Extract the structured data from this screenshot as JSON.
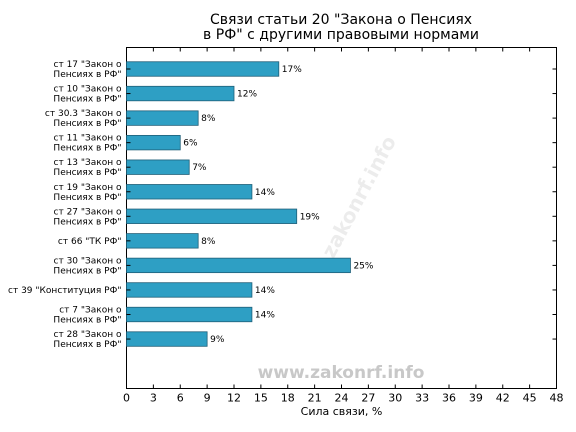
{
  "chart_data": {
    "type": "bar",
    "orientation": "horizontal",
    "title_lines": [
      "Связи статьи 20 \"Закона о Пенсиях",
      "в РФ\" с другими правовыми нормами"
    ],
    "xlabel": "Сила связи, %",
    "ylabel": "",
    "xlim": [
      0,
      48
    ],
    "xticks": [
      0,
      3,
      6,
      9,
      12,
      15,
      18,
      21,
      24,
      27,
      30,
      33,
      36,
      39,
      42,
      45,
      48
    ],
    "bar_color": "#2e9fc4",
    "value_suffix": "%",
    "categories": [
      [
        "ст 17 \"Закон о",
        "Пенсиях в РФ\""
      ],
      [
        "ст 10 \"Закон о",
        "Пенсиях в РФ\""
      ],
      [
        "ст 30.3 \"Закон о",
        "Пенсиях в РФ\""
      ],
      [
        "ст 11 \"Закон о",
        "Пенсиях в РФ\""
      ],
      [
        "ст 13 \"Закон о",
        "Пенсиях в РФ\""
      ],
      [
        "ст 19 \"Закон о",
        "Пенсиях в РФ\""
      ],
      [
        "ст 27 \"Закон о",
        "Пенсиях в РФ\""
      ],
      [
        "ст 66 \"ТК РФ\""
      ],
      [
        "ст 30 \"Закон о",
        "Пенсиях в РФ\""
      ],
      [
        "ст 39 \"Конституция РФ\""
      ],
      [
        "ст 7 \"Закон о",
        "Пенсиях в РФ\""
      ],
      [
        "ст 28 \"Закон о",
        "Пенсиях в РФ\""
      ]
    ],
    "values": [
      17,
      12,
      8,
      6,
      7,
      14,
      19,
      8,
      25,
      14,
      14,
      9
    ],
    "grid": false
  },
  "watermark": {
    "text": "www.zakonrf.info",
    "diagonal_text": "zakonrf.info"
  }
}
